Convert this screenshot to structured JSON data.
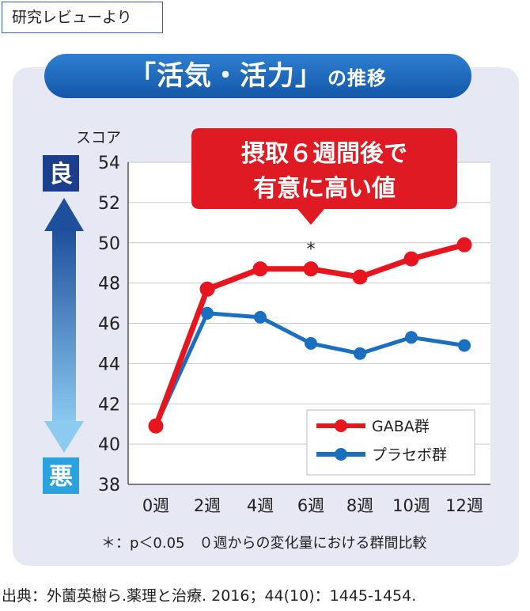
{
  "tag_label": "研究レビューより",
  "banner": {
    "title": "「活気・活力」",
    "suffix": "の推移"
  },
  "score_label": "スコア",
  "side_labels": {
    "good": "良",
    "bad": "悪"
  },
  "callout": {
    "line1": "摂取６週間後で",
    "line2": "有意に高い値",
    "marker": "*"
  },
  "footnote": "＊：p＜0.05　０週からの変化量における群間比較",
  "source": "出典：外薗英樹ら.薬理と治療. 2016；44(10)：1445-1454.",
  "colors": {
    "gaba": "#e8141e",
    "placebo": "#1a6fc0",
    "panel": "#e6e8f4",
    "banner": "#1d65b8"
  },
  "chart_data": {
    "type": "line",
    "categories": [
      "0週",
      "2週",
      "4週",
      "6週",
      "8週",
      "10週",
      "12週"
    ],
    "ylabel": "スコア",
    "ylim": [
      38,
      54
    ],
    "yticks": [
      38,
      40,
      42,
      44,
      46,
      48,
      50,
      52,
      54
    ],
    "grid": "horizontal",
    "legend": "bottom-right",
    "series": [
      {
        "name": "GABA群",
        "color": "#e8141e",
        "values": [
          40.9,
          47.7,
          48.7,
          48.7,
          48.3,
          49.2,
          49.9
        ]
      },
      {
        "name": "プラセボ群",
        "color": "#1a6fc0",
        "values": [
          40.9,
          46.5,
          46.3,
          45.0,
          44.5,
          45.3,
          44.9
        ]
      }
    ]
  }
}
